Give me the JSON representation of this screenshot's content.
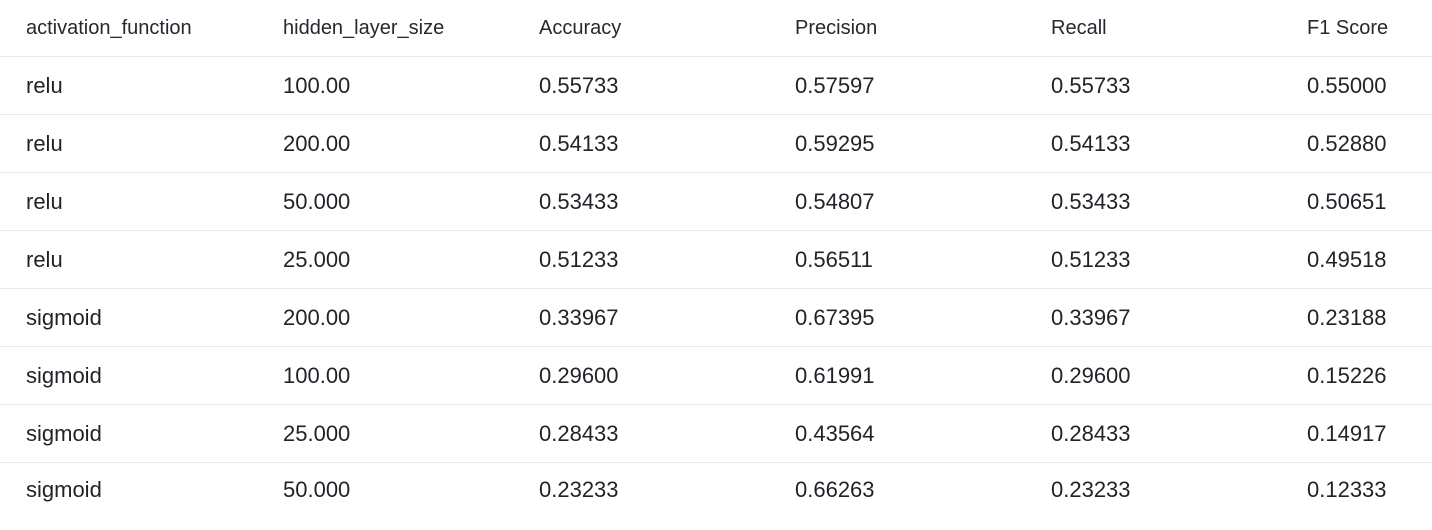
{
  "table": {
    "columns": [
      "activation_function",
      "hidden_layer_size",
      "Accuracy",
      "Precision",
      "Recall",
      "F1 Score"
    ],
    "rows": [
      [
        "relu",
        "100.00",
        "0.55733",
        "0.57597",
        "0.55733",
        "0.55000"
      ],
      [
        "relu",
        "200.00",
        "0.54133",
        "0.59295",
        "0.54133",
        "0.52880"
      ],
      [
        "relu",
        "50.000",
        "0.53433",
        "0.54807",
        "0.53433",
        "0.50651"
      ],
      [
        "relu",
        "25.000",
        "0.51233",
        "0.56511",
        "0.51233",
        "0.49518"
      ],
      [
        "sigmoid",
        "200.00",
        "0.33967",
        "0.67395",
        "0.33967",
        "0.23188"
      ],
      [
        "sigmoid",
        "100.00",
        "0.29600",
        "0.61991",
        "0.29600",
        "0.15226"
      ],
      [
        "sigmoid",
        "25.000",
        "0.28433",
        "0.43564",
        "0.28433",
        "0.14917"
      ],
      [
        "sigmoid",
        "50.000",
        "0.23233",
        "0.66263",
        "0.23233",
        "0.12333"
      ]
    ]
  }
}
